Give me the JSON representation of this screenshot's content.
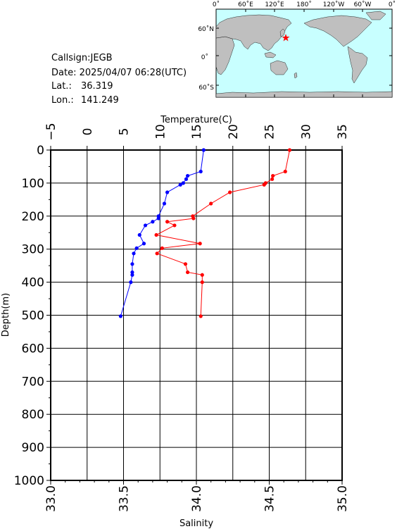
{
  "station": {
    "callsign": "Callsign:JEGB",
    "date": "Date:  2025/04/07 06:28(UTC)",
    "lat_label": "Lat.:",
    "lat_value": "36.319",
    "lon_label": "Lon.:",
    "lon_value": "141.249"
  },
  "map": {
    "top_ticks": [
      "0˚",
      "60˚E",
      "120˚E",
      "180˚",
      "120˚W",
      "60˚W",
      "0˚"
    ],
    "side_ticks": [
      "60˚N",
      "0˚",
      "60˚S"
    ],
    "ocean_color": "#c8ffff",
    "land_color": "#bfbfbf",
    "marker_color": "#ff0000"
  },
  "chart_data": {
    "type": "line",
    "title": "",
    "temperature_axis": {
      "label": "Temperature(C)",
      "range": [
        -5,
        35
      ],
      "ticks": [
        -5,
        0,
        5,
        10,
        15,
        20,
        25,
        30,
        35
      ],
      "tick_labels": [
        "−5",
        "0",
        "5",
        "10",
        "15",
        "20",
        "25",
        "30",
        "35"
      ]
    },
    "salinity_axis": {
      "label": "Salinity",
      "range": [
        33.0,
        35.0
      ],
      "ticks": [
        33.0,
        33.5,
        34.0,
        34.5,
        35.0
      ],
      "tick_labels": [
        "33.0",
        "33.5",
        "34.0",
        "34.5",
        "35.0"
      ]
    },
    "depth_axis": {
      "label": "Depth(m)",
      "range": [
        0,
        1000
      ],
      "ticks": [
        0,
        100,
        200,
        300,
        400,
        500,
        600,
        700,
        800,
        900,
        1000
      ],
      "tick_labels": [
        "0",
        "100",
        "200",
        "300",
        "400",
        "500",
        "600",
        "700",
        "800",
        "900",
        "1000"
      ],
      "inverted": true
    },
    "grid": true,
    "series": [
      {
        "color": "#ff0000",
        "axis": "temperature",
        "points": [
          {
            "value": 27.8,
            "depth": 0
          },
          {
            "value": 27.2,
            "depth": 65
          },
          {
            "value": 25.5,
            "depth": 78
          },
          {
            "value": 25.4,
            "depth": 88
          },
          {
            "value": 24.5,
            "depth": 100
          },
          {
            "value": 24.3,
            "depth": 105
          },
          {
            "value": 19.6,
            "depth": 128
          },
          {
            "value": 17.0,
            "depth": 162
          },
          {
            "value": 14.5,
            "depth": 200
          },
          {
            "value": 14.6,
            "depth": 207
          },
          {
            "value": 11.0,
            "depth": 217
          },
          {
            "value": 12.0,
            "depth": 228
          },
          {
            "value": 9.5,
            "depth": 257
          },
          {
            "value": 15.5,
            "depth": 283
          },
          {
            "value": 10.3,
            "depth": 297
          },
          {
            "value": 9.6,
            "depth": 313
          },
          {
            "value": 13.5,
            "depth": 345
          },
          {
            "value": 13.8,
            "depth": 370
          },
          {
            "value": 15.8,
            "depth": 378
          },
          {
            "value": 15.8,
            "depth": 400
          },
          {
            "value": 15.6,
            "depth": 503
          }
        ]
      },
      {
        "color": "#0000ff",
        "axis": "salinity",
        "points": [
          {
            "value": 34.05,
            "depth": 0
          },
          {
            "value": 34.03,
            "depth": 65
          },
          {
            "value": 33.94,
            "depth": 78
          },
          {
            "value": 33.93,
            "depth": 88
          },
          {
            "value": 33.91,
            "depth": 100
          },
          {
            "value": 33.89,
            "depth": 105
          },
          {
            "value": 33.8,
            "depth": 128
          },
          {
            "value": 33.78,
            "depth": 162
          },
          {
            "value": 33.74,
            "depth": 200
          },
          {
            "value": 33.74,
            "depth": 207
          },
          {
            "value": 33.7,
            "depth": 217
          },
          {
            "value": 33.65,
            "depth": 228
          },
          {
            "value": 33.61,
            "depth": 257
          },
          {
            "value": 33.64,
            "depth": 283
          },
          {
            "value": 33.59,
            "depth": 297
          },
          {
            "value": 33.57,
            "depth": 313
          },
          {
            "value": 33.56,
            "depth": 345
          },
          {
            "value": 33.56,
            "depth": 370
          },
          {
            "value": 33.56,
            "depth": 378
          },
          {
            "value": 33.55,
            "depth": 400
          },
          {
            "value": 33.48,
            "depth": 503
          }
        ]
      }
    ]
  }
}
